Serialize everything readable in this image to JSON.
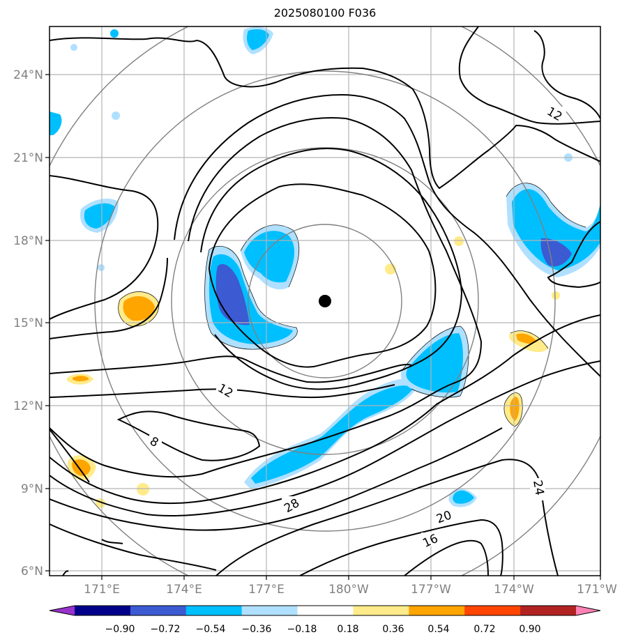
{
  "title": "2025080100 F036",
  "lat_labels": [
    "24°N",
    "21°N",
    "18°N",
    "15°N",
    "12°N",
    "9°N",
    "6°N"
  ],
  "lon_labels": [
    "171°E",
    "174°E",
    "177°E",
    "180°W",
    "177°W",
    "174°W",
    "171°W"
  ],
  "contour_labels": [
    {
      "text": "12",
      "lat": 22.5,
      "lon": -172.9
    },
    {
      "text": "12",
      "lat": 12.5,
      "lon": 175.5
    },
    {
      "text": "8",
      "lat": 10.6,
      "lon": 173.0
    },
    {
      "text": "28",
      "lat": 8.1,
      "lon": 177.8
    },
    {
      "text": "20",
      "lat": 7.5,
      "lon": -176.5
    },
    {
      "text": "16",
      "lat": 6.7,
      "lon": -176.9
    },
    {
      "text": "24",
      "lat": 8.8,
      "lon": -173.5
    }
  ],
  "storm_center": {
    "lat": 15.8,
    "lon": 179.25
  },
  "colorbar": {
    "ticks": [
      "−0.90",
      "−0.72",
      "−0.54",
      "−0.36",
      "−0.18",
      "0.18",
      "0.36",
      "0.54",
      "0.72",
      "0.90"
    ],
    "colors": [
      "#9932cc",
      "#00008b",
      "#3c5ad2",
      "#00bfff",
      "#b0e0ff",
      "#ffffff",
      "#ffeb8a",
      "#ffa500",
      "#ff4500",
      "#b22222",
      "#ff82b4"
    ]
  }
}
